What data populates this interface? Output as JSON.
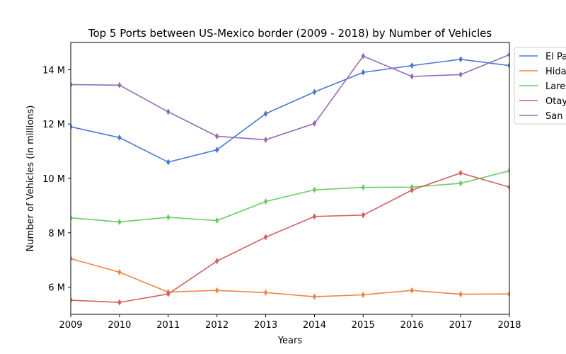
{
  "chart_data": {
    "type": "line",
    "title": "Top 5 Ports between US-Mexico border (2009 - 2018) by Number of Vehicles",
    "xlabel": "Years",
    "ylabel": "Number of Vehicles (in millions)",
    "x": [
      "2009",
      "2010",
      "2011",
      "2012",
      "2013",
      "2014",
      "2015",
      "2016",
      "2017",
      "2018"
    ],
    "xlim": [
      2009,
      2018
    ],
    "ylim": [
      5.0,
      15.0
    ],
    "yticks": [
      6,
      8,
      10,
      12,
      14
    ],
    "ytick_labels": [
      "6 M",
      "8 M",
      "10 M",
      "12 M",
      "14 M"
    ],
    "grid": false,
    "legend_position": "outside top-right",
    "series": [
      {
        "name": "El Paso",
        "legend_label": "El Pa",
        "color": "#4878d0",
        "values": [
          11.9,
          11.5,
          10.6,
          11.05,
          12.38,
          13.18,
          13.9,
          14.15,
          14.38,
          14.15
        ]
      },
      {
        "name": "Hidalgo",
        "legend_label": "Hida",
        "color": "#ee854a",
        "values": [
          7.05,
          6.55,
          5.82,
          5.88,
          5.8,
          5.65,
          5.72,
          5.88,
          5.74,
          5.75
        ]
      },
      {
        "name": "Laredo",
        "legend_label": "Lare",
        "color": "#6acc64",
        "values": [
          8.55,
          8.4,
          8.57,
          8.45,
          9.15,
          9.58,
          9.67,
          9.68,
          9.82,
          10.28
        ]
      },
      {
        "name": "Otay Mesa",
        "legend_label": "Otay",
        "color": "#d65f5f",
        "values": [
          5.52,
          5.44,
          5.75,
          6.96,
          7.84,
          8.6,
          8.65,
          9.57,
          10.2,
          9.68
        ]
      },
      {
        "name": "San Ysidro",
        "legend_label": "San",
        "color": "#956cb4",
        "values": [
          13.45,
          13.43,
          12.45,
          11.55,
          11.42,
          12.02,
          14.5,
          13.75,
          13.82,
          14.55
        ]
      }
    ]
  }
}
